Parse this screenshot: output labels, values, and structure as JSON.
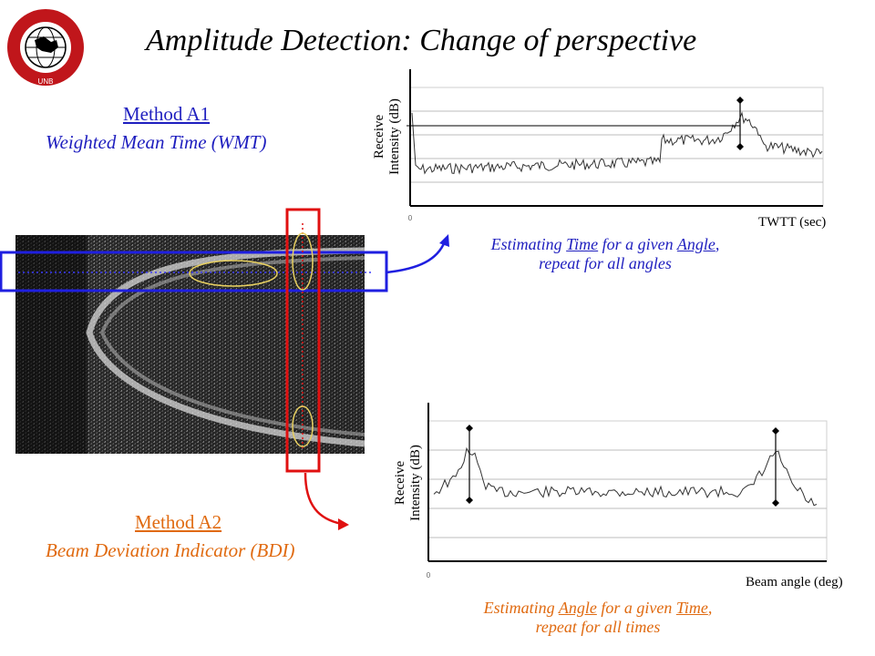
{
  "title": "Amplitude Detection:  Change of perspective",
  "logo": {
    "text_top": "GEODESY AND GEOMATICS ENGINEERING",
    "text_bottom": "UNB"
  },
  "method_a1": {
    "title": "Method A1",
    "subtitle": "Weighted Mean Time (WMT)"
  },
  "method_a2": {
    "title": "Method A2",
    "subtitle": "Beam Deviation Indicator (BDI)"
  },
  "chart_top": {
    "ylabel_line1": "Receive",
    "ylabel_line2": "Intensity (dB)",
    "xlabel": "TWTT (sec)",
    "origin": "0",
    "caption_parts": [
      "Estimating ",
      "Time",
      "  for a given ",
      "Angle",
      ","
    ],
    "caption_line2": "repeat for all angles"
  },
  "chart_bottom": {
    "ylabel_line1": "Receive",
    "ylabel_line2": "Intensity (dB)",
    "xlabel": "Beam angle (deg)",
    "origin": "0",
    "caption_parts": [
      "Estimating ",
      "Angle",
      "  for a given ",
      "Time",
      ","
    ],
    "caption_line2": "repeat for all times"
  },
  "colors": {
    "blue": "#1f1fbf",
    "orange": "#e06a10",
    "red": "#e01010",
    "highlight": "#e8d060"
  }
}
